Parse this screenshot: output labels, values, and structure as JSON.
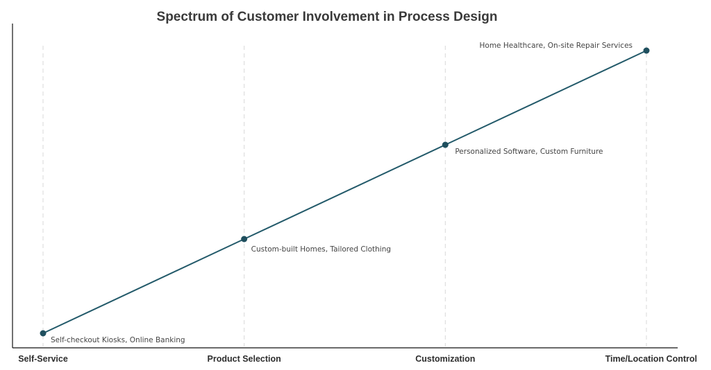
{
  "colors": {
    "line": "#235a6a",
    "point": "#1f4f5e",
    "grid": "#d9d9d9",
    "axis": "#111111"
  },
  "chart_data": {
    "type": "line",
    "title": "Spectrum of Customer Involvement in Process Design",
    "xlabel": "",
    "ylabel": "",
    "grid": true,
    "categories": [
      "Self-Service",
      "Product Selection",
      "Customization",
      "Time/Location Control"
    ],
    "values": [
      1,
      2,
      3,
      4
    ],
    "ylim": [
      0.8,
      4.0
    ],
    "annotations": [
      "Self-checkout Kiosks, Online Banking",
      "Custom-built Homes, Tailored Clothing",
      "Personalized Software, Custom Furniture",
      "Home Healthcare, On-site Repair Services"
    ]
  }
}
